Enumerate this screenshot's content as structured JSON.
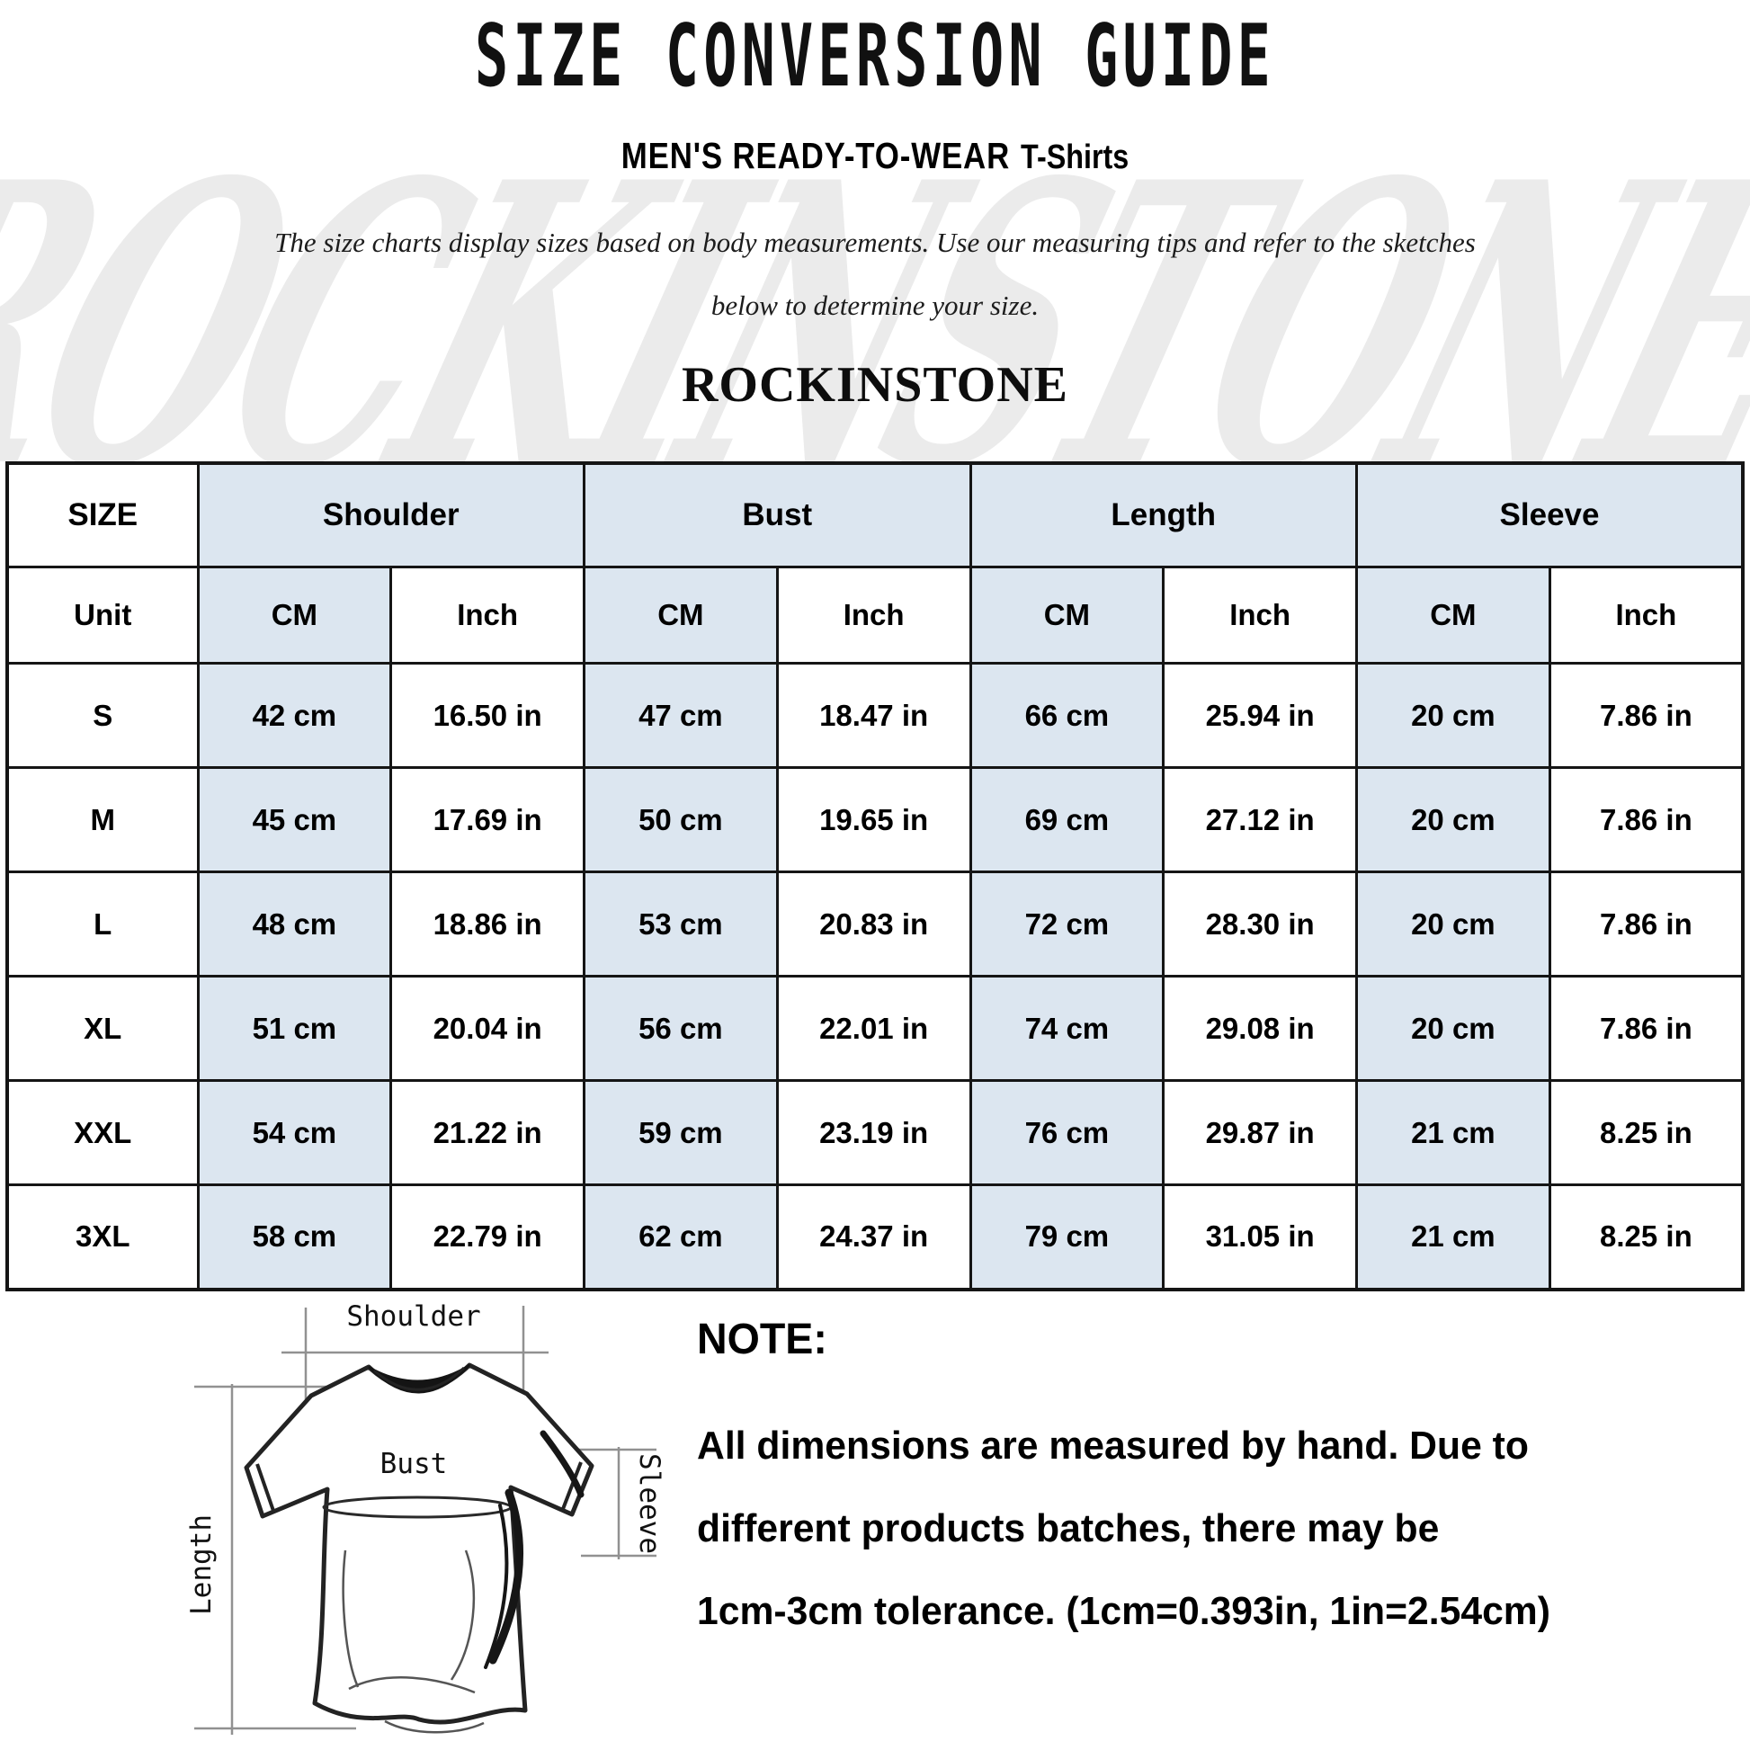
{
  "page": {
    "title": "SIZE CONVERSION GUIDE",
    "subtitle_primary": "MEN'S READY-TO-WEAR",
    "subtitle_secondary": "T-Shirts",
    "description_line1": "The size charts display sizes based on body measurements. Use our measuring tips and refer to the sketches",
    "description_line2": "below to determine your size.",
    "brand": "ROCKINSTONE",
    "watermark_text": "ROCKINSTONE"
  },
  "table": {
    "size_header": "SIZE",
    "unit_label": "Unit",
    "groups": [
      "Shoulder",
      "Bust",
      "Length",
      "Sleeve"
    ],
    "unit_cols": [
      "CM",
      "Inch",
      "CM",
      "Inch",
      "CM",
      "Inch",
      "CM",
      "Inch"
    ],
    "rows": [
      {
        "size": "S",
        "cells": [
          "42 cm",
          "16.50 in",
          "47 cm",
          "18.47 in",
          "66 cm",
          "25.94 in",
          "20 cm",
          "7.86 in"
        ]
      },
      {
        "size": "M",
        "cells": [
          "45 cm",
          "17.69 in",
          "50 cm",
          "19.65 in",
          "69 cm",
          "27.12 in",
          "20 cm",
          "7.86 in"
        ]
      },
      {
        "size": "L",
        "cells": [
          "48 cm",
          "18.86 in",
          "53 cm",
          "20.83 in",
          "72 cm",
          "28.30 in",
          "20 cm",
          "7.86 in"
        ]
      },
      {
        "size": "XL",
        "cells": [
          "51 cm",
          "20.04 in",
          "56 cm",
          "22.01 in",
          "74 cm",
          "29.08 in",
          "20 cm",
          "7.86 in"
        ]
      },
      {
        "size": "XXL",
        "cells": [
          "54 cm",
          "21.22 in",
          "59 cm",
          "23.19 in",
          "76 cm",
          "29.87 in",
          "21 cm",
          "8.25 in"
        ]
      },
      {
        "size": "3XL",
        "cells": [
          "58 cm",
          "22.79 in",
          "62 cm",
          "24.37 in",
          "79 cm",
          "31.05 in",
          "21 cm",
          "8.25 in"
        ]
      }
    ]
  },
  "diagram": {
    "shoulder_label": "Shoulder",
    "bust_label": "Bust",
    "length_label": "Length",
    "sleeve_label": "Sleeve"
  },
  "note": {
    "heading": "NOTE:",
    "lines": [
      "All dimensions are measured by hand. Due to",
      "different products batches, there may be",
      "1cm-3cm tolerance. (1cm=0.393in, 1in=2.54cm)"
    ]
  },
  "colors": {
    "shaded_cell": "#dce6f0",
    "table_border": "#151515",
    "watermark": "#ebebeb"
  }
}
